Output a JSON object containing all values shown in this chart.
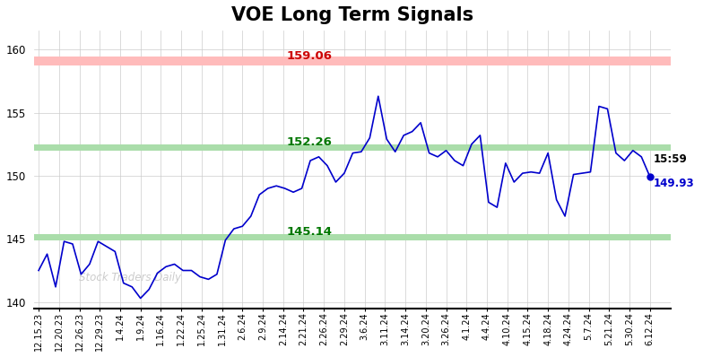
{
  "title": "VOE Long Term Signals",
  "title_fontsize": 15,
  "watermark": "Stock Traders Daily",
  "ylim": [
    139.5,
    161.5
  ],
  "yticks": [
    140,
    145,
    150,
    155,
    160
  ],
  "hline_red": 159.06,
  "hline_green1": 152.26,
  "hline_green2": 145.14,
  "hline_red_color": "#ffbbbb",
  "hline_green_color": "#aaddaa",
  "label_red": "159.06",
  "label_green1": "152.26",
  "label_green2": "145.14",
  "last_time": "15:59",
  "last_price": 149.93,
  "line_color": "#0000cc",
  "background_color": "#ffffff",
  "grid_color": "#cccccc",
  "xtick_labels": [
    "12.15.23",
    "12.20.23",
    "12.26.23",
    "12.29.23",
    "1.4.24",
    "1.9.24",
    "1.16.24",
    "1.22.24",
    "1.25.24",
    "1.31.24",
    "2.6.24",
    "2.9.24",
    "2.14.24",
    "2.21.24",
    "2.26.24",
    "2.29.24",
    "3.6.24",
    "3.11.24",
    "3.14.24",
    "3.20.24",
    "3.26.24",
    "4.1.24",
    "4.4.24",
    "4.10.24",
    "4.15.24",
    "4.18.24",
    "4.24.24",
    "5.7.24",
    "5.21.24",
    "5.30.24",
    "6.12.24"
  ],
  "prices": [
    142.5,
    143.8,
    141.2,
    144.8,
    144.6,
    142.2,
    143.0,
    144.8,
    144.4,
    144.0,
    141.5,
    141.2,
    140.3,
    141.0,
    142.3,
    142.8,
    143.0,
    142.5,
    142.5,
    142.0,
    141.8,
    142.2,
    144.9,
    145.8,
    146.0,
    146.8,
    148.5,
    149.0,
    149.2,
    149.0,
    148.7,
    149.0,
    151.2,
    151.5,
    150.8,
    149.5,
    150.2,
    151.8,
    151.9,
    153.0,
    156.3,
    152.9,
    151.9,
    153.2,
    153.5,
    154.2,
    151.8,
    151.5,
    152.0,
    151.2,
    150.8,
    152.5,
    153.2,
    147.9,
    147.5,
    151.0,
    149.5,
    150.2,
    150.3,
    150.2,
    151.8,
    148.1,
    146.8,
    150.1,
    150.2,
    150.3,
    155.5,
    155.3,
    151.8,
    151.2,
    152.0,
    151.5,
    149.93
  ]
}
